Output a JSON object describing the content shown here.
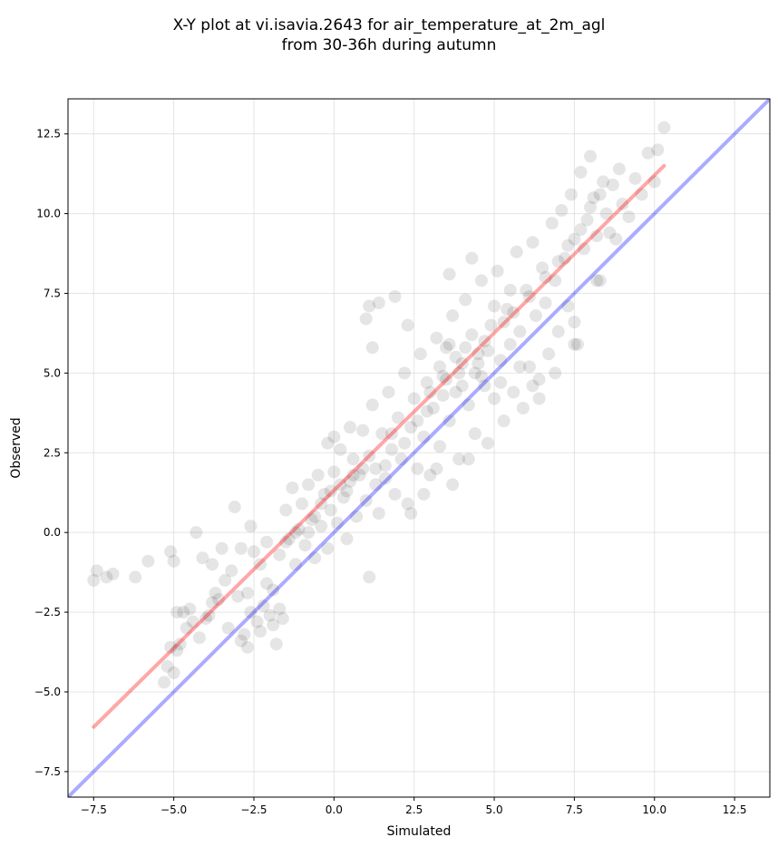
{
  "chart_data": {
    "type": "scatter",
    "title": "X-Y plot at vi.isavia.2643 for air_temperature_at_2m_agl",
    "subtitle": "from 30-36h during autumn",
    "xlabel": "Simulated",
    "ylabel": "Observed",
    "xlim": [
      -8.3,
      13.6
    ],
    "ylim": [
      -8.3,
      13.6
    ],
    "xticks": [
      -7.5,
      -5.0,
      -2.5,
      0.0,
      2.5,
      5.0,
      7.5,
      10.0,
      12.5
    ],
    "yticks": [
      -7.5,
      -5.0,
      -2.5,
      0.0,
      2.5,
      5.0,
      7.5,
      10.0,
      12.5
    ],
    "xtick_labels": [
      "−7.5",
      "−5.0",
      "−2.5",
      "0.0",
      "2.5",
      "5.0",
      "7.5",
      "10.0",
      "12.5"
    ],
    "ytick_labels": [
      "−7.5",
      "−5.0",
      "−2.5",
      "0.0",
      "2.5",
      "5.0",
      "7.5",
      "10.0",
      "12.5"
    ],
    "grid": true,
    "marker_color": "#000000",
    "marker_alpha": 0.1,
    "points": [
      [
        -7.5,
        -1.5
      ],
      [
        -7.4,
        -1.2
      ],
      [
        -7.1,
        -1.4
      ],
      [
        -6.9,
        -1.3
      ],
      [
        -6.2,
        -1.4
      ],
      [
        -5.8,
        -0.9
      ],
      [
        -5.1,
        -0.6
      ],
      [
        -5.0,
        -0.9
      ],
      [
        -4.9,
        -2.5
      ],
      [
        -4.7,
        -2.5
      ],
      [
        -4.5,
        -2.4
      ],
      [
        -4.3,
        0.0
      ],
      [
        -4.1,
        -0.8
      ],
      [
        -3.9,
        -2.6
      ],
      [
        -3.8,
        -1.0
      ],
      [
        -3.7,
        -1.9
      ],
      [
        -3.6,
        -2.1
      ],
      [
        -3.5,
        -0.5
      ],
      [
        -3.4,
        -1.5
      ],
      [
        -3.3,
        -3.0
      ],
      [
        -3.2,
        -1.2
      ],
      [
        -3.1,
        0.8
      ],
      [
        -3.0,
        -2.0
      ],
      [
        -2.9,
        -0.5
      ],
      [
        -2.8,
        -3.2
      ],
      [
        -2.7,
        -1.9
      ],
      [
        -2.6,
        0.2
      ],
      [
        -2.5,
        -0.6
      ],
      [
        -2.4,
        -2.8
      ],
      [
        -2.3,
        -1.0
      ],
      [
        -2.2,
        -2.3
      ],
      [
        -2.1,
        -0.3
      ],
      [
        -2.0,
        -2.6
      ],
      [
        -1.9,
        -1.8
      ],
      [
        -1.8,
        -3.5
      ],
      [
        -1.7,
        -0.7
      ],
      [
        -1.6,
        -2.7
      ],
      [
        -1.5,
        0.7
      ],
      [
        -1.4,
        -0.2
      ],
      [
        -1.3,
        1.4
      ],
      [
        -1.2,
        -1.0
      ],
      [
        -1.1,
        0.1
      ],
      [
        -5.1,
        -3.6
      ],
      [
        -5.0,
        -4.4
      ],
      [
        -4.9,
        -3.7
      ],
      [
        -5.2,
        -4.2
      ],
      [
        -4.8,
        -3.5
      ],
      [
        -5.3,
        -4.7
      ],
      [
        -4.6,
        -3.0
      ],
      [
        -4.4,
        -2.8
      ],
      [
        -4.2,
        -3.3
      ],
      [
        -4.0,
        -2.7
      ],
      [
        -3.8,
        -2.2
      ],
      [
        -2.9,
        -3.4
      ],
      [
        -2.7,
        -3.6
      ],
      [
        -2.6,
        -2.5
      ],
      [
        -2.3,
        -3.1
      ],
      [
        -2.1,
        -1.6
      ],
      [
        -1.9,
        -2.9
      ],
      [
        -1.7,
        -2.4
      ],
      [
        -1.0,
        0.9
      ],
      [
        -0.9,
        -0.4
      ],
      [
        -0.8,
        1.5
      ],
      [
        -0.7,
        0.4
      ],
      [
        -0.6,
        -0.8
      ],
      [
        -0.5,
        1.8
      ],
      [
        -0.4,
        0.2
      ],
      [
        -0.3,
        1.2
      ],
      [
        -0.2,
        -0.5
      ],
      [
        -0.1,
        0.7
      ],
      [
        0.0,
        1.9
      ],
      [
        0.1,
        0.3
      ],
      [
        0.2,
        2.6
      ],
      [
        0.3,
        1.1
      ],
      [
        0.4,
        -0.2
      ],
      [
        0.5,
        1.6
      ],
      [
        0.6,
        2.3
      ],
      [
        0.7,
        0.5
      ],
      [
        0.8,
        1.8
      ],
      [
        0.9,
        3.2
      ],
      [
        1.0,
        1.0
      ],
      [
        1.1,
        -1.4
      ],
      [
        1.1,
        2.4
      ],
      [
        1.2,
        4.0
      ],
      [
        1.3,
        2.0
      ],
      [
        1.4,
        0.6
      ],
      [
        1.5,
        3.1
      ],
      [
        1.6,
        1.7
      ],
      [
        1.7,
        4.4
      ],
      [
        1.8,
        2.6
      ],
      [
        1.9,
        1.2
      ],
      [
        2.0,
        3.6
      ],
      [
        2.1,
        2.3
      ],
      [
        2.2,
        5.0
      ],
      [
        2.3,
        0.9
      ],
      [
        2.4,
        3.3
      ],
      [
        2.5,
        4.2
      ],
      [
        2.6,
        2.0
      ],
      [
        2.7,
        5.6
      ],
      [
        2.8,
        3.0
      ],
      [
        2.9,
        4.7
      ],
      [
        3.0,
        1.8
      ],
      [
        3.1,
        3.9
      ],
      [
        3.2,
        6.1
      ],
      [
        3.3,
        2.7
      ],
      [
        3.4,
        4.9
      ],
      [
        3.5,
        5.8
      ],
      [
        3.6,
        3.5
      ],
      [
        3.7,
        6.8
      ],
      [
        3.8,
        4.4
      ],
      [
        3.9,
        2.3
      ],
      [
        4.0,
        5.3
      ],
      [
        4.1,
        7.3
      ],
      [
        4.2,
        4.0
      ],
      [
        4.3,
        6.2
      ],
      [
        4.4,
        3.1
      ],
      [
        4.5,
        5.6
      ],
      [
        4.6,
        7.9
      ],
      [
        4.7,
        4.6
      ],
      [
        4.8,
        2.8
      ],
      [
        4.9,
        6.5
      ],
      [
        5.0,
        4.2
      ],
      [
        5.1,
        8.2
      ],
      [
        5.2,
        5.4
      ],
      [
        5.3,
        3.5
      ],
      [
        5.4,
        7.0
      ],
      [
        5.5,
        5.9
      ],
      [
        5.6,
        4.4
      ],
      [
        5.7,
        8.8
      ],
      [
        5.8,
        6.3
      ],
      [
        5.9,
        3.9
      ],
      [
        6.0,
        7.6
      ],
      [
        6.1,
        5.2
      ],
      [
        6.2,
        9.1
      ],
      [
        6.3,
        6.8
      ],
      [
        6.4,
        4.8
      ],
      [
        6.5,
        8.3
      ],
      [
        6.6,
        7.2
      ],
      [
        6.7,
        5.6
      ],
      [
        6.8,
        9.7
      ],
      [
        6.9,
        7.9
      ],
      [
        7.0,
        6.3
      ],
      [
        7.1,
        10.1
      ],
      [
        7.2,
        8.6
      ],
      [
        7.3,
        7.1
      ],
      [
        7.4,
        10.6
      ],
      [
        7.5,
        9.2
      ],
      [
        7.6,
        5.9
      ],
      [
        7.7,
        11.3
      ],
      [
        7.8,
        8.9
      ],
      [
        7.9,
        9.8
      ],
      [
        8.0,
        11.8
      ],
      [
        8.1,
        10.5
      ],
      [
        8.2,
        9.3
      ],
      [
        8.3,
        7.9
      ],
      [
        8.4,
        11.0
      ],
      [
        8.5,
        10.0
      ],
      [
        8.6,
        9.4
      ],
      [
        8.7,
        10.9
      ],
      [
        8.8,
        9.2
      ],
      [
        8.9,
        11.4
      ],
      [
        9.0,
        10.3
      ],
      [
        9.2,
        9.9
      ],
      [
        9.4,
        11.1
      ],
      [
        9.6,
        10.6
      ],
      [
        9.8,
        11.9
      ],
      [
        10.0,
        11.0
      ],
      [
        10.1,
        12.0
      ],
      [
        10.3,
        12.7
      ],
      [
        1.1,
        7.1
      ],
      [
        1.0,
        6.7
      ],
      [
        1.4,
        7.2
      ],
      [
        1.9,
        7.4
      ],
      [
        1.2,
        5.8
      ],
      [
        0.5,
        3.3
      ],
      [
        0.0,
        3.0
      ],
      [
        -0.2,
        2.8
      ],
      [
        2.3,
        6.5
      ],
      [
        3.6,
        8.1
      ],
      [
        4.3,
        8.6
      ],
      [
        2.4,
        0.6
      ],
      [
        2.8,
        1.2
      ],
      [
        3.2,
        2.0
      ],
      [
        3.7,
        1.5
      ],
      [
        4.2,
        2.3
      ],
      [
        6.4,
        4.2
      ],
      [
        6.9,
        5.0
      ],
      [
        7.5,
        6.6
      ],
      [
        7.5,
        5.9
      ],
      [
        8.2,
        7.9
      ],
      [
        6.2,
        4.6
      ],
      [
        5.8,
        5.2
      ],
      [
        3.0,
        4.4
      ],
      [
        3.3,
        5.2
      ],
      [
        3.8,
        5.5
      ],
      [
        4.1,
        5.8
      ],
      [
        4.4,
        5.0
      ],
      [
        4.7,
        6.0
      ],
      [
        3.5,
        4.8
      ],
      [
        3.9,
        5.0
      ],
      [
        4.5,
        5.3
      ],
      [
        4.0,
        4.6
      ],
      [
        3.6,
        5.9
      ],
      [
        4.8,
        5.7
      ],
      [
        2.2,
        2.8
      ],
      [
        2.6,
        3.5
      ],
      [
        1.6,
        2.1
      ],
      [
        1.3,
        1.5
      ],
      [
        0.9,
        2.0
      ],
      [
        0.4,
        1.3
      ],
      [
        1.8,
        3.1
      ],
      [
        2.9,
        3.8
      ],
      [
        3.4,
        4.3
      ],
      [
        5.3,
        6.6
      ],
      [
        5.6,
        6.9
      ],
      [
        6.1,
        7.4
      ],
      [
        6.6,
        8.0
      ],
      [
        7.0,
        8.5
      ],
      [
        7.3,
        9.0
      ],
      [
        7.7,
        9.5
      ],
      [
        8.0,
        10.2
      ],
      [
        8.3,
        10.6
      ],
      [
        -0.4,
        0.9
      ],
      [
        -0.1,
        1.3
      ],
      [
        0.2,
        1.5
      ],
      [
        0.6,
        1.8
      ],
      [
        -0.6,
        0.5
      ],
      [
        -1.2,
        0.0
      ],
      [
        -1.5,
        -0.3
      ],
      [
        -0.8,
        0.0
      ],
      [
        5.0,
        7.1
      ],
      [
        5.5,
        7.6
      ],
      [
        4.6,
        4.9
      ],
      [
        5.2,
        4.7
      ]
    ],
    "series": [
      {
        "label": "regression",
        "color": "#ff0000",
        "alpha": 0.35,
        "x": [
          -7.5,
          10.3
        ],
        "y": [
          -6.1,
          11.5
        ]
      },
      {
        "label": "identity",
        "color": "#0000ff",
        "alpha": 0.33,
        "x": [
          -8.3,
          13.6
        ],
        "y": [
          -8.3,
          13.6
        ]
      }
    ]
  }
}
